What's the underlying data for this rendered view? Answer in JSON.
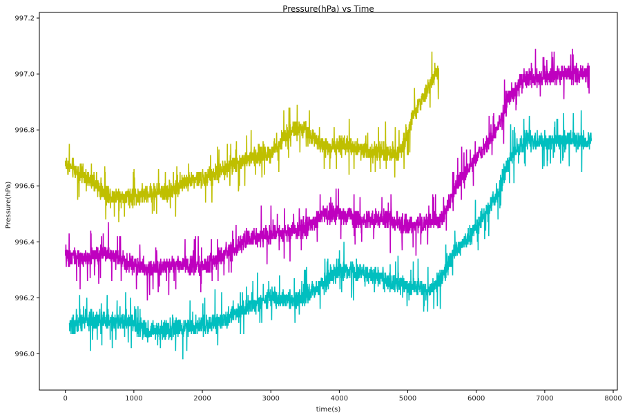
{
  "chart_data": {
    "type": "line",
    "title": "Pressure(hPa) vs Time",
    "xlabel": "time(s)",
    "ylabel": "Pressure(hPa)",
    "xlim": [
      -380,
      8060
    ],
    "ylim": [
      995.87,
      997.22
    ],
    "xticks": [
      0,
      1000,
      2000,
      3000,
      4000,
      5000,
      6000,
      7000,
      8000
    ],
    "yticks": [
      996.0,
      996.2,
      996.4,
      996.6,
      996.8,
      997.0,
      997.2
    ],
    "ytick_labels": [
      "996.0",
      "996.2",
      "996.4",
      "996.6",
      "996.8",
      "997.0",
      "997.2"
    ],
    "grid": false,
    "series": [
      {
        "color": "#bfbf00",
        "noise": 0.05,
        "points": [
          [
            0,
            996.68
          ],
          [
            300,
            996.63
          ],
          [
            600,
            996.57
          ],
          [
            900,
            996.56
          ],
          [
            1200,
            996.57
          ],
          [
            1500,
            996.58
          ],
          [
            1800,
            996.62
          ],
          [
            2100,
            996.63
          ],
          [
            2400,
            996.67
          ],
          [
            2700,
            996.7
          ],
          [
            3000,
            996.72
          ],
          [
            3300,
            996.8
          ],
          [
            3500,
            996.8
          ],
          [
            3800,
            996.74
          ],
          [
            4200,
            996.74
          ],
          [
            4600,
            996.72
          ],
          [
            4900,
            996.72
          ],
          [
            5100,
            996.86
          ],
          [
            5300,
            996.95
          ],
          [
            5450,
            997.02
          ]
        ]
      },
      {
        "color": "#bf00bf",
        "noise": 0.05,
        "points": [
          [
            0,
            996.35
          ],
          [
            300,
            996.34
          ],
          [
            600,
            996.36
          ],
          [
            900,
            996.33
          ],
          [
            1200,
            996.3
          ],
          [
            1600,
            996.32
          ],
          [
            2000,
            996.31
          ],
          [
            2300,
            996.35
          ],
          [
            2700,
            996.41
          ],
          [
            3100,
            996.43
          ],
          [
            3500,
            996.45
          ],
          [
            3800,
            996.5
          ],
          [
            4000,
            996.5
          ],
          [
            4400,
            996.48
          ],
          [
            4700,
            996.48
          ],
          [
            5000,
            996.46
          ],
          [
            5300,
            996.47
          ],
          [
            5500,
            996.48
          ],
          [
            5700,
            996.6
          ],
          [
            6000,
            996.7
          ],
          [
            6300,
            996.8
          ],
          [
            6500,
            996.93
          ],
          [
            6700,
            996.98
          ],
          [
            7000,
            996.99
          ],
          [
            7300,
            997.0
          ],
          [
            7650,
            997.0
          ]
        ]
      },
      {
        "color": "#00bfbf",
        "noise": 0.05,
        "points": [
          [
            60,
            996.1
          ],
          [
            300,
            996.12
          ],
          [
            600,
            996.12
          ],
          [
            900,
            996.12
          ],
          [
            1200,
            996.08
          ],
          [
            1600,
            996.09
          ],
          [
            2000,
            996.1
          ],
          [
            2300,
            996.12
          ],
          [
            2700,
            996.17
          ],
          [
            3000,
            996.2
          ],
          [
            3300,
            996.19
          ],
          [
            3500,
            996.2
          ],
          [
            3700,
            996.24
          ],
          [
            4000,
            996.3
          ],
          [
            4300,
            996.29
          ],
          [
            4600,
            996.27
          ],
          [
            5000,
            996.24
          ],
          [
            5300,
            996.23
          ],
          [
            5500,
            996.27
          ],
          [
            5700,
            996.37
          ],
          [
            6000,
            996.45
          ],
          [
            6300,
            996.57
          ],
          [
            6500,
            996.7
          ],
          [
            6700,
            996.76
          ],
          [
            7000,
            996.76
          ],
          [
            7300,
            996.76
          ],
          [
            7680,
            996.76
          ]
        ]
      }
    ]
  }
}
